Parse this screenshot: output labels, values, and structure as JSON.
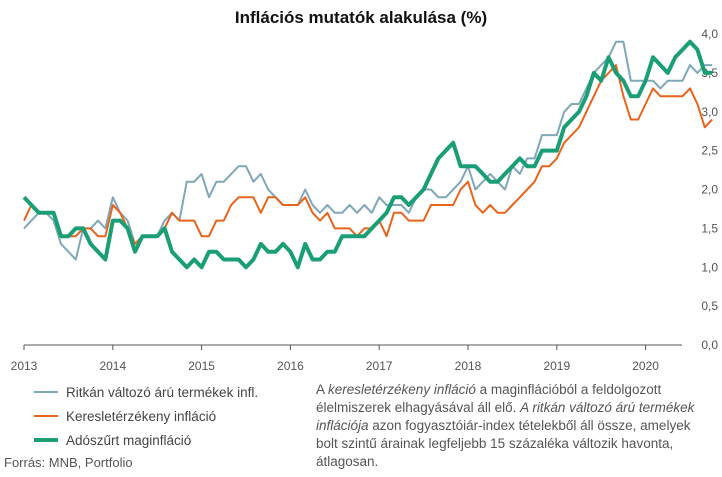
{
  "title": "Inflációs mutatók alakulása (%)",
  "source": "Forrás: MNB, Portfolio",
  "note_parts": [
    {
      "t": "A ",
      "i": false
    },
    {
      "t": "keresletérzékeny infláció",
      "i": true
    },
    {
      "t": " a maginflációból a feldolgozott élelmiszerek elhagyásával áll elő. ",
      "i": false
    },
    {
      "t": "A ritkán változó árú termékek inflációja",
      "i": true
    },
    {
      "t": " azon fogyasztóiár-index tételekből áll össze, amelyek bolt szintű árainak legfeljebb 15 százaléka változik havonta, átlagosan.",
      "i": false
    }
  ],
  "chart_data": {
    "type": "line",
    "title": "Inflációs mutatók alakulása (%)",
    "xlabel": "",
    "ylabel": "",
    "x_start": "2013-01",
    "frequency": "monthly",
    "x_ticks": [
      "2013",
      "2014",
      "2015",
      "2016",
      "2017",
      "2018",
      "2019",
      "2020"
    ],
    "y_ticks": [
      "0,0",
      "0,5",
      "1,0",
      "1,5",
      "2,0",
      "2,5",
      "3,0",
      "3,5",
      "4,0"
    ],
    "ylim": [
      0,
      4
    ],
    "grid": false,
    "legend": "bottom-left",
    "series": [
      {
        "name": "Ritkán változó árú termékek infl.",
        "color": "#7fa7b8",
        "width": 2,
        "values": [
          1.5,
          1.6,
          1.7,
          1.7,
          1.6,
          1.3,
          1.2,
          1.1,
          1.5,
          1.5,
          1.6,
          1.5,
          1.9,
          1.7,
          1.6,
          1.3,
          1.4,
          1.4,
          1.4,
          1.6,
          1.7,
          1.6,
          2.1,
          2.1,
          2.2,
          1.9,
          2.1,
          2.1,
          2.2,
          2.3,
          2.3,
          2.1,
          2.2,
          2.0,
          1.9,
          1.8,
          1.8,
          1.8,
          2.0,
          1.8,
          1.7,
          1.8,
          1.7,
          1.7,
          1.8,
          1.7,
          1.8,
          1.7,
          1.9,
          1.8,
          1.8,
          1.8,
          1.7,
          1.9,
          2.0,
          2.0,
          1.9,
          1.9,
          2.0,
          2.1,
          2.3,
          2.0,
          2.1,
          2.2,
          2.1,
          2.0,
          2.3,
          2.2,
          2.4,
          2.4,
          2.7,
          2.7,
          2.7,
          3.0,
          3.1,
          3.1,
          3.3,
          3.5,
          3.6,
          3.7,
          3.9,
          3.9,
          3.4,
          3.4,
          3.4,
          3.4,
          3.3,
          3.4,
          3.4,
          3.4,
          3.6,
          3.5,
          3.6,
          3.6
        ]
      },
      {
        "name": "Keresletérzékeny infláció",
        "color": "#e8641b",
        "width": 2,
        "values": [
          1.6,
          1.8,
          1.7,
          1.7,
          1.7,
          1.4,
          1.4,
          1.4,
          1.5,
          1.5,
          1.4,
          1.4,
          1.8,
          1.7,
          1.5,
          1.3,
          1.4,
          1.4,
          1.4,
          1.5,
          1.7,
          1.6,
          1.6,
          1.6,
          1.4,
          1.4,
          1.6,
          1.6,
          1.8,
          1.9,
          1.9,
          1.9,
          1.7,
          1.9,
          1.9,
          1.8,
          1.8,
          1.8,
          1.9,
          1.7,
          1.6,
          1.7,
          1.5,
          1.5,
          1.5,
          1.4,
          1.5,
          1.5,
          1.6,
          1.4,
          1.7,
          1.7,
          1.6,
          1.6,
          1.6,
          1.8,
          1.8,
          1.8,
          1.8,
          2.0,
          2.1,
          1.8,
          1.7,
          1.8,
          1.7,
          1.7,
          1.8,
          1.9,
          2.0,
          2.1,
          2.3,
          2.3,
          2.4,
          2.6,
          2.7,
          2.8,
          3.0,
          3.2,
          3.4,
          3.5,
          3.6,
          3.2,
          2.9,
          2.9,
          3.1,
          3.3,
          3.2,
          3.2,
          3.2,
          3.2,
          3.3,
          3.1,
          2.8,
          2.9
        ]
      },
      {
        "name": "Adószűrt maginfláció",
        "color": "#1a9e75",
        "width": 4,
        "values": [
          1.9,
          1.8,
          1.7,
          1.7,
          1.7,
          1.4,
          1.4,
          1.5,
          1.5,
          1.3,
          1.2,
          1.1,
          1.6,
          1.6,
          1.5,
          1.2,
          1.4,
          1.4,
          1.4,
          1.5,
          1.2,
          1.1,
          1.0,
          1.1,
          1.0,
          1.2,
          1.2,
          1.1,
          1.1,
          1.1,
          1.0,
          1.1,
          1.3,
          1.2,
          1.2,
          1.3,
          1.2,
          1.0,
          1.3,
          1.1,
          1.1,
          1.2,
          1.2,
          1.4,
          1.4,
          1.4,
          1.4,
          1.5,
          1.6,
          1.7,
          1.9,
          1.9,
          1.8,
          1.9,
          2.0,
          2.2,
          2.4,
          2.5,
          2.6,
          2.3,
          2.3,
          2.3,
          2.2,
          2.1,
          2.1,
          2.2,
          2.3,
          2.4,
          2.3,
          2.3,
          2.5,
          2.5,
          2.5,
          2.8,
          2.9,
          3.0,
          3.2,
          3.5,
          3.4,
          3.7,
          3.5,
          3.4,
          3.2,
          3.2,
          3.4,
          3.7,
          3.6,
          3.5,
          3.7,
          3.8,
          3.9,
          3.8,
          3.5,
          3.5
        ]
      }
    ]
  }
}
